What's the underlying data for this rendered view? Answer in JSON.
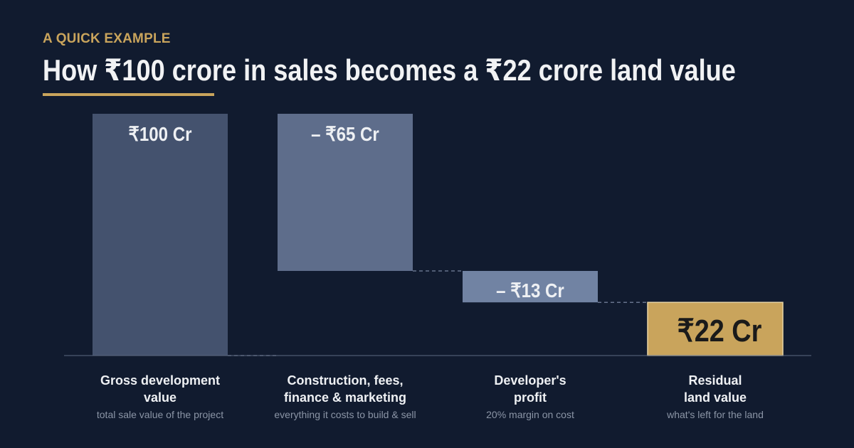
{
  "header": {
    "eyebrow": "A QUICK EXAMPLE",
    "title": "How ₹100 crore in sales becomes a ₹22 crore land value"
  },
  "colors": {
    "background": "#111b2f",
    "accent": "#c9a45c",
    "bar_gross": "#44526e",
    "bar_costs": "#5e6d8b",
    "bar_profit": "#7183a3",
    "bar_residual": "#c9a45c",
    "label_light": "#eef0f3",
    "label_dark": "#1a1a1a",
    "muted": "#8b95a6"
  },
  "chart_data": {
    "type": "bar",
    "subtype": "waterfall",
    "ylim": [
      0,
      100
    ],
    "grid": false,
    "categories": [
      {
        "title_lines": [
          "Gross development",
          "value"
        ],
        "subtitle": "total sale value of the project",
        "value": 100,
        "start": 0,
        "end": 100,
        "label": "₹100 Cr",
        "kind": "total"
      },
      {
        "title_lines": [
          "Construction, fees,",
          "finance & marketing"
        ],
        "subtitle": "everything it costs to build & sell",
        "value": -65,
        "start": 100,
        "end": 35,
        "label": "– ₹65 Cr",
        "kind": "decrease"
      },
      {
        "title_lines": [
          "Developer's",
          "profit"
        ],
        "subtitle": "20% margin on cost",
        "value": -13,
        "start": 35,
        "end": 22,
        "label": "– ₹13 Cr",
        "kind": "decrease"
      },
      {
        "title_lines": [
          "Residual",
          "land value"
        ],
        "subtitle": "what's left for the land",
        "value": 22,
        "start": 0,
        "end": 22,
        "label": "₹22 Cr",
        "kind": "result"
      }
    ]
  }
}
